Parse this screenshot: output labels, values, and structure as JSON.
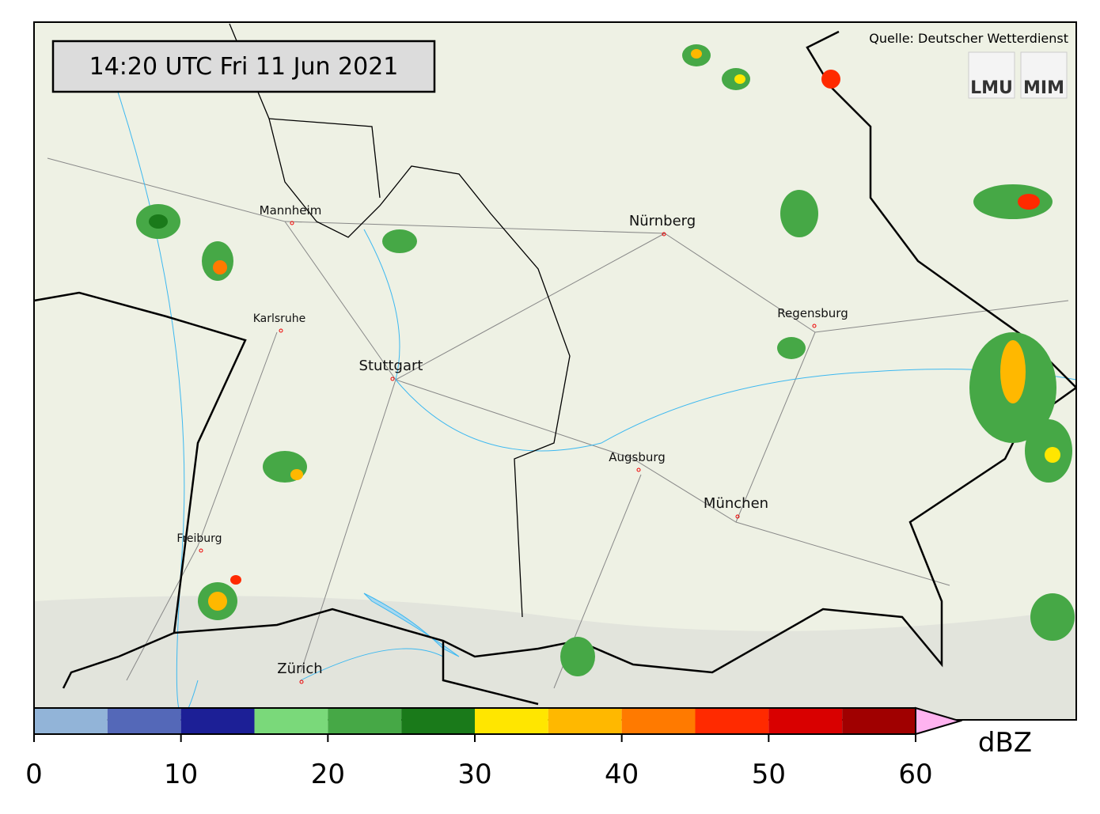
{
  "timestamp": "14:20 UTC  Fri 11 Jun 2021",
  "source": "Quelle: Deutscher Wetterdienst",
  "logos": [
    "LMU",
    "MIM"
  ],
  "cities": [
    "Mannheim",
    "Nürnberg",
    "Karlsruhe",
    "Regensburg",
    "Stuttgart",
    "Augsburg",
    "München",
    "Freiburg",
    "Zürich"
  ],
  "colorbar": {
    "bounds": [
      0,
      5,
      10,
      15,
      20,
      25,
      30,
      35,
      40,
      45,
      50,
      55,
      60
    ],
    "colors": [
      "#92b4d8",
      "#5468b8",
      "#1c1f96",
      "#7ad97a",
      "#46a846",
      "#1a7a1a",
      "#ffe600",
      "#ffb800",
      "#ff7a00",
      "#ff2a00",
      "#d90000",
      "#a00000"
    ],
    "extend_color": "#ffb3f0",
    "ticks": [
      0,
      10,
      20,
      30,
      40,
      50,
      60
    ],
    "unit": "dBZ"
  }
}
